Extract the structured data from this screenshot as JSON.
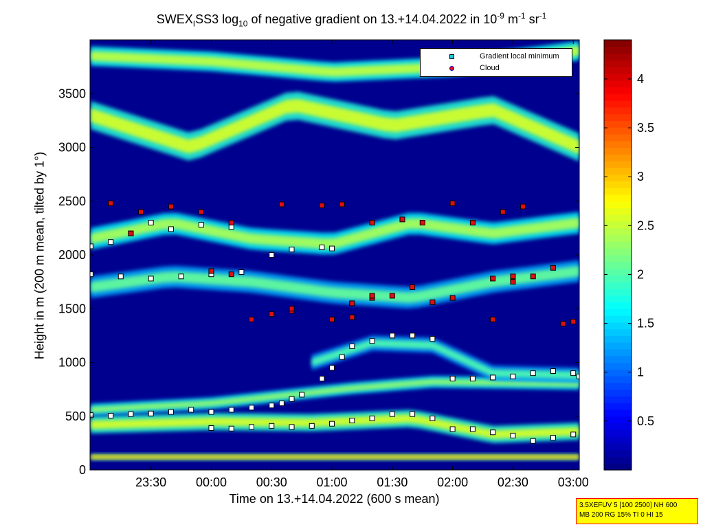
{
  "figure": {
    "title_prefix": "SWEX",
    "title_sub1": "I",
    "title_mid": "SS3 log",
    "title_sub2": "10",
    "title_after": " of negative gradient on 13.+14.04.2022 in 10",
    "title_sup1": "-9",
    "title_unit1": " m",
    "title_sup2": "-1",
    "title_unit2": " sr",
    "title_sup3": "-1",
    "info_line1": "3.5XEFUV 5 [100 2500] NH 600",
    "info_line2": "MB 200 RG 15% TI 0 HI 15"
  },
  "chart_data": {
    "type": "heatmap",
    "xlabel": "Time on 13.+14.04.2022 (600 s mean)",
    "ylabel": "Height in m (200 m mean, tilted by 1°)",
    "x_ticks": [
      "23:30",
      "00:00",
      "00:30",
      "01:00",
      "01:30",
      "02:00",
      "02:30",
      "03:00"
    ],
    "x_tick_minutes": [
      30,
      60,
      90,
      120,
      150,
      180,
      210,
      240
    ],
    "xlim_minutes": [
      -0.3,
      243
    ],
    "y_ticks": [
      0,
      500,
      1000,
      1500,
      2000,
      2500,
      3000,
      3500
    ],
    "ylim": [
      0,
      4000
    ],
    "colorbar": {
      "colormap": "jet",
      "range": [
        0,
        4.4
      ],
      "ticks": [
        0.5,
        1,
        1.5,
        2,
        2.5,
        3,
        3.5,
        4
      ],
      "tick_labels": [
        "0.5",
        "1",
        "1.5",
        "2",
        "2.5",
        "3",
        "3.5",
        "4"
      ]
    },
    "legend": {
      "placement": "top-right",
      "entries": [
        {
          "label": "Gradient local minimum",
          "marker": "square",
          "color": "#22c8e0"
        },
        {
          "label": "Cloud",
          "marker": "circle",
          "color": "#ee1010"
        }
      ]
    },
    "layers": [
      {
        "kind": "band",
        "time_start": 0,
        "time_end": 243,
        "height": [
          [
            0,
            120
          ],
          [
            80,
            120
          ],
          [
            160,
            120
          ],
          [
            243,
            120
          ]
        ],
        "width": 60,
        "value": 3.0
      },
      {
        "kind": "band",
        "time_start": 0,
        "time_end": 243,
        "height": [
          [
            0,
            420
          ],
          [
            60,
            450
          ],
          [
            110,
            440
          ],
          [
            160,
            480
          ],
          [
            200,
            330
          ],
          [
            243,
            360
          ]
        ],
        "width": 160,
        "value": 2.6
      },
      {
        "kind": "band",
        "time_start": 0,
        "time_end": 243,
        "height": [
          [
            0,
            560
          ],
          [
            60,
            620
          ],
          [
            100,
            700
          ],
          [
            130,
            760
          ],
          [
            170,
            820
          ],
          [
            243,
            800
          ]
        ],
        "width": 110,
        "value": 2.3
      },
      {
        "kind": "band",
        "time_start": 110,
        "time_end": 243,
        "height": [
          [
            110,
            1000
          ],
          [
            140,
            1180
          ],
          [
            170,
            1160
          ],
          [
            200,
            900
          ],
          [
            243,
            880
          ]
        ],
        "width": 140,
        "value": 2.0
      },
      {
        "kind": "band",
        "time_start": 0,
        "time_end": 243,
        "height": [
          [
            0,
            1700
          ],
          [
            40,
            1800
          ],
          [
            80,
            1750
          ],
          [
            120,
            1650
          ],
          [
            160,
            1600
          ],
          [
            200,
            1750
          ],
          [
            243,
            1850
          ]
        ],
        "width": 200,
        "value": 2.1
      },
      {
        "kind": "band",
        "time_start": 0,
        "time_end": 243,
        "height": [
          [
            0,
            2150
          ],
          [
            40,
            2300
          ],
          [
            80,
            2150
          ],
          [
            120,
            2100
          ],
          [
            160,
            2300
          ],
          [
            200,
            2200
          ],
          [
            243,
            2300
          ]
        ],
        "width": 200,
        "value": 2.4
      },
      {
        "kind": "band",
        "time_start": 0,
        "time_end": 243,
        "height": [
          [
            0,
            3300
          ],
          [
            50,
            3000
          ],
          [
            100,
            3400
          ],
          [
            150,
            3200
          ],
          [
            200,
            3350
          ],
          [
            243,
            3000
          ]
        ],
        "width": 260,
        "value": 2.6
      },
      {
        "kind": "band",
        "time_start": 0,
        "time_end": 243,
        "height": [
          [
            0,
            3850
          ],
          [
            60,
            3800
          ],
          [
            120,
            3700
          ],
          [
            180,
            3750
          ],
          [
            243,
            3900
          ]
        ],
        "width": 180,
        "value": 2.5
      }
    ],
    "markers": [
      {
        "type": "minimum",
        "points": [
          [
            0,
            510
          ],
          [
            10,
            505
          ],
          [
            20,
            520
          ],
          [
            30,
            525
          ],
          [
            40,
            540
          ],
          [
            50,
            560
          ],
          [
            60,
            540
          ],
          [
            70,
            560
          ],
          [
            80,
            580
          ],
          [
            90,
            600
          ],
          [
            95,
            620
          ],
          [
            100,
            660
          ],
          [
            105,
            700
          ]
        ]
      },
      {
        "type": "minimum",
        "points": [
          [
            60,
            390
          ],
          [
            70,
            385
          ],
          [
            80,
            400
          ],
          [
            90,
            410
          ],
          [
            100,
            400
          ],
          [
            110,
            410
          ],
          [
            120,
            430
          ],
          [
            130,
            460
          ],
          [
            140,
            480
          ],
          [
            150,
            520
          ],
          [
            160,
            520
          ],
          [
            170,
            480
          ],
          [
            180,
            380
          ],
          [
            190,
            380
          ],
          [
            200,
            350
          ],
          [
            210,
            320
          ],
          [
            220,
            270
          ],
          [
            230,
            300
          ],
          [
            240,
            330
          ]
        ]
      },
      {
        "type": "minimum",
        "points": [
          [
            180,
            850
          ],
          [
            190,
            850
          ],
          [
            200,
            860
          ],
          [
            210,
            870
          ],
          [
            220,
            900
          ],
          [
            230,
            920
          ],
          [
            240,
            900
          ],
          [
            243,
            870
          ]
        ]
      },
      {
        "type": "minimum",
        "points": [
          [
            115,
            850
          ],
          [
            120,
            950
          ],
          [
            125,
            1050
          ],
          [
            130,
            1150
          ],
          [
            140,
            1200
          ],
          [
            150,
            1250
          ],
          [
            160,
            1250
          ],
          [
            170,
            1220
          ]
        ]
      },
      {
        "type": "minimum",
        "points": [
          [
            0,
            2080
          ],
          [
            10,
            2120
          ],
          [
            20,
            2200
          ],
          [
            30,
            2300
          ],
          [
            40,
            2240
          ],
          [
            55,
            2280
          ],
          [
            70,
            2260
          ],
          [
            90,
            2000
          ],
          [
            100,
            2050
          ],
          [
            115,
            2070
          ],
          [
            120,
            2060
          ]
        ]
      },
      {
        "type": "minimum",
        "points": [
          [
            0,
            1820
          ],
          [
            15,
            1800
          ],
          [
            30,
            1780
          ],
          [
            45,
            1800
          ],
          [
            60,
            1820
          ],
          [
            75,
            1840
          ]
        ]
      },
      {
        "type": "cloud",
        "points": [
          [
            80,
            1400
          ],
          [
            90,
            1450
          ],
          [
            100,
            1480
          ],
          [
            120,
            1400
          ],
          [
            130,
            1550
          ],
          [
            140,
            1600
          ],
          [
            150,
            1620
          ],
          [
            160,
            1700
          ],
          [
            170,
            1560
          ],
          [
            180,
            1600
          ]
        ]
      },
      {
        "type": "cloud",
        "points": [
          [
            200,
            1400
          ],
          [
            210,
            1750
          ],
          [
            220,
            1800
          ],
          [
            230,
            1880
          ],
          [
            240,
            1380
          ]
        ]
      },
      {
        "type": "cloud",
        "points": [
          [
            10,
            2480
          ],
          [
            25,
            2400
          ],
          [
            40,
            2450
          ],
          [
            55,
            2400
          ],
          [
            70,
            2300
          ],
          [
            95,
            2470
          ],
          [
            115,
            2460
          ],
          [
            125,
            2470
          ]
        ]
      },
      {
        "type": "cloud",
        "points": [
          [
            140,
            2300
          ],
          [
            155,
            2330
          ],
          [
            165,
            2300
          ],
          [
            180,
            2480
          ],
          [
            190,
            2300
          ],
          [
            205,
            2400
          ],
          [
            215,
            2450
          ]
        ]
      },
      {
        "type": "cloud",
        "points": [
          [
            20,
            2200
          ],
          [
            60,
            1850
          ],
          [
            70,
            1820
          ],
          [
            90,
            1450
          ],
          [
            100,
            1500
          ],
          [
            130,
            1420
          ],
          [
            140,
            1620
          ],
          [
            200,
            1780
          ],
          [
            210,
            1800
          ],
          [
            235,
            1360
          ]
        ]
      }
    ]
  }
}
